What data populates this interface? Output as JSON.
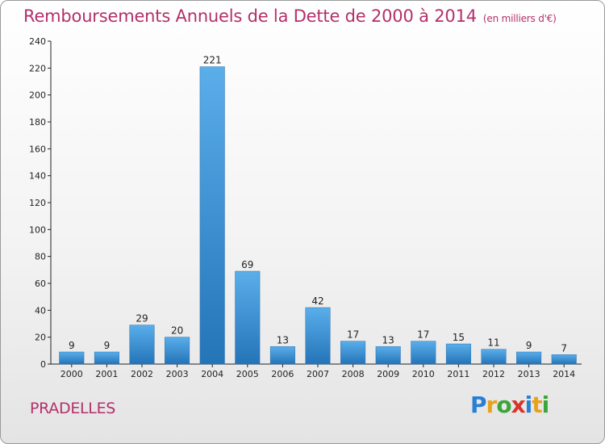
{
  "header": {
    "title": "Remboursements Annuels de la Dette de 2000 à 2014",
    "subtitle": "(en milliers d'€)"
  },
  "commune": "PRADELLES",
  "brand": {
    "letters": [
      "P",
      "r",
      "o",
      "x",
      "i",
      "t",
      "i"
    ],
    "colors": [
      "#2a7fd4",
      "#e8a21c",
      "#3aa53a",
      "#d8342a",
      "#2a7fd4",
      "#e8a21c",
      "#3aa53a"
    ]
  },
  "chart_data": {
    "type": "bar",
    "title": "Remboursements Annuels de la Dette de 2000 à 2014",
    "subtitle": "(en milliers d'€)",
    "categories": [
      "2000",
      "2001",
      "2002",
      "2003",
      "2004",
      "2005",
      "2006",
      "2007",
      "2008",
      "2009",
      "2010",
      "2011",
      "2012",
      "2013",
      "2014"
    ],
    "values": [
      9,
      9,
      29,
      20,
      221,
      69,
      13,
      42,
      17,
      13,
      17,
      15,
      11,
      9,
      7
    ],
    "ylim": [
      0,
      240
    ],
    "yticks": [
      0,
      20,
      40,
      60,
      80,
      100,
      120,
      140,
      160,
      180,
      200,
      220,
      240
    ],
    "grid": false,
    "bar_color": "#3a91d6"
  }
}
